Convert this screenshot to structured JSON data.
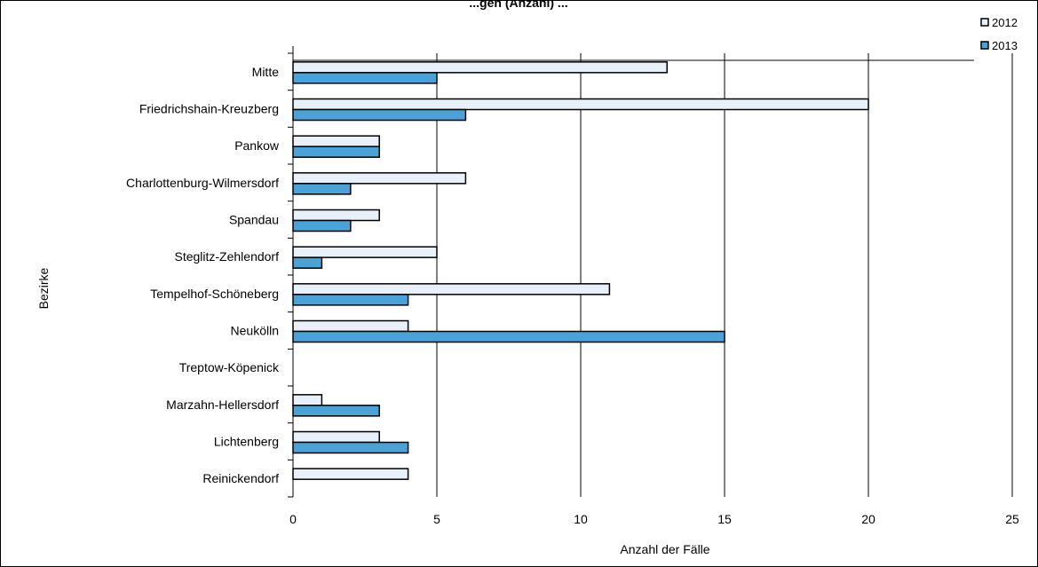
{
  "chart_data": {
    "type": "bar",
    "orientation": "horizontal",
    "title": "...gen (Anzahl) ...",
    "xlabel": "Anzahl der Fälle",
    "ylabel": "Bezirke",
    "xlim": [
      0,
      25
    ],
    "xticks": [
      0,
      5,
      10,
      15,
      20,
      25
    ],
    "grid": true,
    "legend": "top-right",
    "categories": [
      "Mitte",
      "Friedrichshain-Kreuzberg",
      "Pankow",
      "Charlottenburg-Wilmersdorf",
      "Spandau",
      "Steglitz-Zehlendorf",
      "Tempelhof-Schöneberg",
      "Neukölln",
      "Treptow-Köpenick",
      "Marzahn-Hellersdorf",
      "Lichtenberg",
      "Reinickendorf"
    ],
    "series": [
      {
        "name": "2012",
        "color": "#e8f1fa",
        "values": [
          13,
          20,
          3,
          6,
          3,
          5,
          11,
          4,
          0,
          1,
          3,
          4
        ]
      },
      {
        "name": "2013",
        "color": "#4aa3d8",
        "values": [
          5,
          6,
          3,
          2,
          2,
          1,
          4,
          15,
          0,
          3,
          4,
          0
        ]
      }
    ]
  }
}
